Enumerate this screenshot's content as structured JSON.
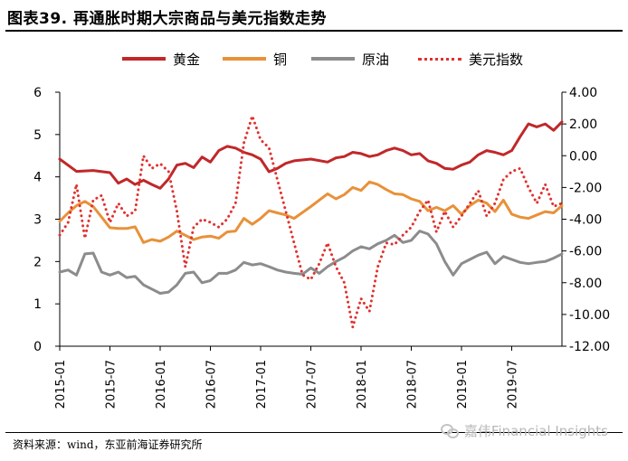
{
  "header": {
    "title": "图表39. 再通胀时期大宗商品与美元指数走势"
  },
  "footer": {
    "source": "资料来源：wind，东亚前海证券研究所",
    "watermark": "嘉伟Financial Insights"
  },
  "colors": {
    "gold": "#c0282a",
    "copper": "#e8913a",
    "oil": "#8c8c8c",
    "usd": "#e0312e"
  },
  "chart_data": {
    "type": "line",
    "title": "",
    "xlabel": "",
    "ylabel": "",
    "legend_position": "top",
    "grid": false,
    "x_ticks": [
      "2015-01",
      "2015-07",
      "2016-01",
      "2016-07",
      "2017-01",
      "2017-07",
      "2018-01",
      "2018-07",
      "2019-01",
      "2019-07"
    ],
    "x_range": [
      0,
      60
    ],
    "ylim_left": [
      0,
      6
    ],
    "ylim_right": [
      -12,
      4
    ],
    "y_ticks_left": [
      "0",
      "1",
      "2",
      "3",
      "4",
      "5",
      "6"
    ],
    "y_ticks_right": [
      "-12.00",
      "-10.00",
      "-8.00",
      "-6.00",
      "-4.00",
      "-2.00",
      "0.00",
      "2.00",
      "4.00"
    ],
    "series": [
      {
        "name": "黄金",
        "axis": "left",
        "style": "solid",
        "color": "#c0282a",
        "x": [
          0,
          2,
          4,
          6,
          7,
          8,
          9,
          10,
          11,
          12,
          13,
          14,
          15,
          16,
          17,
          18,
          19,
          20,
          21,
          22,
          23,
          24,
          25,
          26,
          27,
          28,
          30,
          32,
          33,
          34,
          35,
          36,
          37,
          38,
          39,
          40,
          41,
          42,
          43,
          44,
          45,
          46,
          47,
          48,
          49,
          50,
          51,
          52,
          53,
          54,
          55,
          56,
          57,
          58,
          59,
          60
        ],
        "values": [
          4.42,
          4.13,
          4.15,
          4.1,
          3.85,
          3.95,
          3.82,
          3.92,
          3.82,
          3.73,
          3.95,
          4.28,
          4.32,
          4.22,
          4.47,
          4.35,
          4.62,
          4.72,
          4.68,
          4.58,
          4.52,
          4.42,
          4.12,
          4.2,
          4.32,
          4.38,
          4.42,
          4.35,
          4.45,
          4.48,
          4.58,
          4.55,
          4.48,
          4.52,
          4.62,
          4.68,
          4.62,
          4.52,
          4.55,
          4.38,
          4.32,
          4.2,
          4.18,
          4.28,
          4.35,
          4.52,
          4.62,
          4.58,
          4.52,
          4.62,
          4.95,
          5.25,
          5.18,
          5.25,
          5.1,
          5.3
        ]
      },
      {
        "name": "铜",
        "axis": "left",
        "style": "solid",
        "color": "#e8913a",
        "x": [
          0,
          1,
          2,
          3,
          4,
          5,
          6,
          7,
          8,
          9,
          10,
          11,
          12,
          13,
          14,
          15,
          16,
          17,
          18,
          19,
          20,
          21,
          22,
          23,
          24,
          25,
          26,
          27,
          28,
          30,
          32,
          33,
          34,
          35,
          36,
          37,
          38,
          39,
          40,
          41,
          42,
          43,
          44,
          45,
          46,
          47,
          48,
          49,
          50,
          51,
          52,
          53,
          54,
          55,
          56,
          57,
          58,
          59,
          60
        ],
        "values": [
          2.95,
          3.15,
          3.32,
          3.42,
          3.3,
          3.05,
          2.8,
          2.78,
          2.78,
          2.82,
          2.45,
          2.52,
          2.48,
          2.58,
          2.72,
          2.62,
          2.52,
          2.58,
          2.6,
          2.55,
          2.7,
          2.72,
          3.02,
          2.88,
          3.02,
          3.2,
          3.15,
          3.1,
          3.02,
          3.3,
          3.6,
          3.48,
          3.58,
          3.75,
          3.68,
          3.88,
          3.82,
          3.7,
          3.6,
          3.58,
          3.48,
          3.42,
          3.2,
          3.28,
          3.2,
          3.32,
          3.12,
          3.32,
          3.45,
          3.38,
          3.18,
          3.45,
          3.12,
          3.05,
          3.02,
          3.1,
          3.18,
          3.15,
          3.32
        ]
      },
      {
        "name": "原油",
        "axis": "left",
        "style": "solid",
        "color": "#8c8c8c",
        "x": [
          0,
          1,
          2,
          3,
          4,
          5,
          6,
          7,
          8,
          9,
          10,
          11,
          12,
          13,
          14,
          15,
          16,
          17,
          18,
          19,
          20,
          21,
          22,
          23,
          24,
          25,
          26,
          27,
          28,
          29,
          30,
          31,
          32,
          33,
          34,
          35,
          36,
          37,
          38,
          39,
          40,
          41,
          42,
          43,
          44,
          45,
          46,
          47,
          48,
          49,
          50,
          51,
          52,
          53,
          54,
          55,
          56,
          57,
          58,
          59,
          60
        ],
        "values": [
          1.75,
          1.8,
          1.68,
          2.18,
          2.2,
          1.75,
          1.68,
          1.75,
          1.62,
          1.65,
          1.45,
          1.35,
          1.25,
          1.28,
          1.45,
          1.72,
          1.75,
          1.5,
          1.55,
          1.72,
          1.72,
          1.8,
          1.98,
          1.92,
          1.95,
          1.88,
          1.8,
          1.75,
          1.72,
          1.7,
          1.85,
          1.72,
          1.88,
          2.0,
          2.1,
          2.25,
          2.35,
          2.3,
          2.42,
          2.5,
          2.62,
          2.45,
          2.5,
          2.72,
          2.65,
          2.42,
          2.0,
          1.68,
          1.95,
          2.05,
          2.15,
          2.22,
          1.95,
          2.12,
          2.05,
          1.98,
          1.95,
          1.98,
          2.0,
          2.08,
          2.18
        ]
      },
      {
        "name": "美元指数",
        "axis": "right",
        "style": "dotted",
        "color": "#e0312e",
        "x": [
          0,
          1,
          2,
          3,
          4,
          5,
          6,
          7,
          8,
          9,
          10,
          11,
          12,
          13,
          14,
          15,
          16,
          17,
          18,
          19,
          20,
          21,
          22,
          23,
          24,
          25,
          26,
          27,
          28,
          29,
          30,
          31,
          32,
          33,
          34,
          35,
          36,
          37,
          38,
          39,
          40,
          41,
          42,
          43,
          44,
          45,
          46,
          47,
          48,
          49,
          50,
          51,
          52,
          53,
          54,
          55,
          56,
          57,
          58,
          59,
          60
        ],
        "values": [
          -5.0,
          -4.2,
          -1.8,
          -5.2,
          -2.8,
          -2.5,
          -4.2,
          -3.0,
          -3.8,
          -3.5,
          0.0,
          -0.8,
          -0.5,
          -1.0,
          -3.5,
          -7.0,
          -4.5,
          -4.0,
          -4.2,
          -4.5,
          -4.0,
          -3.0,
          0.8,
          2.5,
          1.0,
          0.5,
          -1.5,
          -3.5,
          -5.5,
          -7.5,
          -7.8,
          -6.8,
          -5.5,
          -7.0,
          -8.0,
          -10.8,
          -9.0,
          -9.8,
          -7.0,
          -5.5,
          -5.6,
          -5.0,
          -4.5,
          -3.5,
          -2.8,
          -4.8,
          -3.5,
          -4.5,
          -3.8,
          -3.0,
          -2.2,
          -3.8,
          -3.0,
          -1.5,
          -1.0,
          -0.8,
          -2.0,
          -3.0,
          -1.8,
          -3.2,
          -3.0
        ]
      }
    ]
  }
}
